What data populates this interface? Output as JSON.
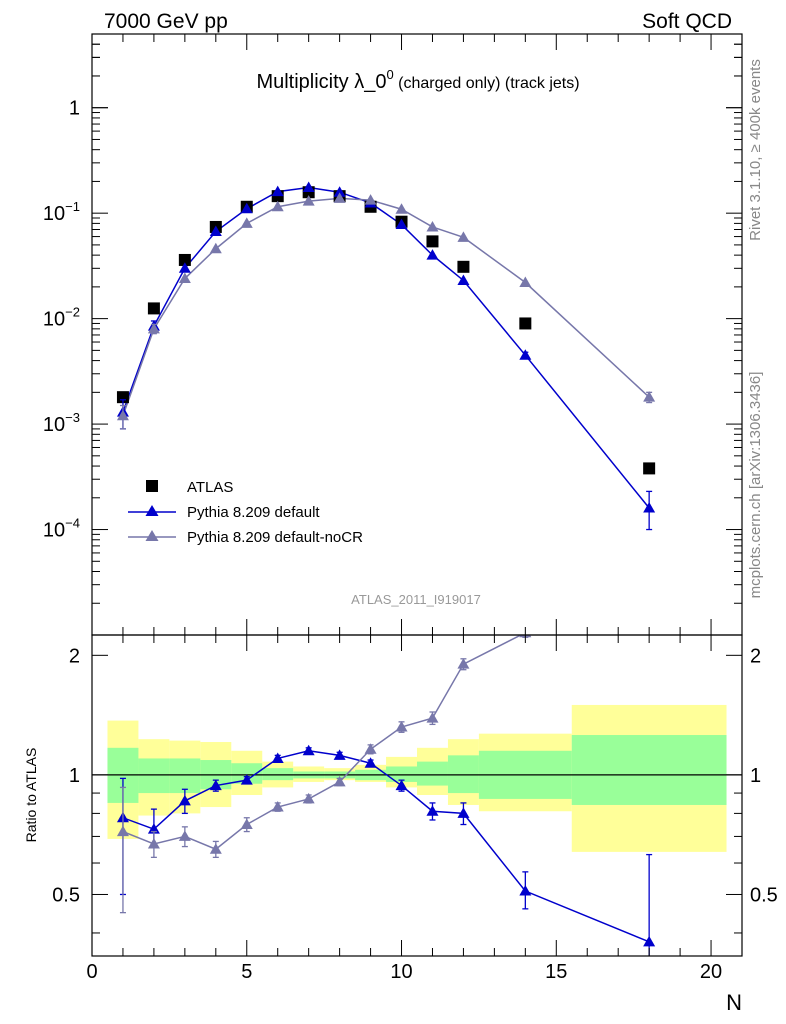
{
  "header": {
    "left_text": "7000 GeV pp",
    "right_text": "Soft QCD"
  },
  "side_text": {
    "rivet": "Rivet 3.1.10, ≥ 400k events",
    "mcplots": "mcplots.cern.ch [arXiv:1306.3436]"
  },
  "chart_data": [
    {
      "type": "scatter",
      "panel": "main",
      "title_main": "Multiplicity λ_0",
      "title_sup": "0",
      "title_suffix": " (charged only) (track jets)",
      "watermark": "ATLAS_2011_I919017",
      "yscale": "log",
      "xlim": [
        0,
        21
      ],
      "ylim": [
        1e-05,
        5
      ],
      "y_tick_labels": [
        {
          "value": 1,
          "mant": "1",
          "exp": ""
        },
        {
          "value": 0.1,
          "mant": "10",
          "exp": "−1"
        },
        {
          "value": 0.01,
          "mant": "10",
          "exp": "−2"
        },
        {
          "value": 0.001,
          "mant": "10",
          "exp": "−3"
        },
        {
          "value": 0.0001,
          "mant": "10",
          "exp": "−4"
        }
      ],
      "legend_position": "bottom-left",
      "series": [
        {
          "name": "ATLAS",
          "marker": "square",
          "color": "#000000",
          "x": [
            1,
            2,
            3,
            4,
            5,
            6,
            7,
            8,
            9,
            10,
            11,
            12,
            14,
            18
          ],
          "y": [
            0.0018,
            0.0125,
            0.036,
            0.074,
            0.115,
            0.145,
            0.158,
            0.145,
            0.115,
            0.083,
            0.054,
            0.031,
            0.009,
            0.00038
          ]
        },
        {
          "name": "Pythia 8.209 default",
          "marker": "triangle",
          "color": "#0000cc",
          "x": [
            1,
            2,
            3,
            4,
            5,
            6,
            7,
            8,
            9,
            10,
            11,
            12,
            14,
            18
          ],
          "y": [
            0.0013,
            0.0085,
            0.03,
            0.067,
            0.11,
            0.16,
            0.175,
            0.158,
            0.125,
            0.078,
            0.04,
            0.023,
            0.0045,
            0.00016
          ],
          "yerr_low": [
            0.0004,
            0.001,
            0,
            0,
            0,
            0,
            0,
            0,
            0,
            0,
            0,
            0,
            0.0003,
            6e-05
          ],
          "yerr_high": [
            0.0004,
            0.001,
            0,
            0,
            0,
            0,
            0,
            0,
            0,
            0,
            0,
            0,
            0.0003,
            7e-05
          ]
        },
        {
          "name": "Pythia 8.209 default-noCR",
          "marker": "triangle",
          "color": "#7777aa",
          "x": [
            1,
            2,
            3,
            4,
            5,
            6,
            7,
            8,
            9,
            10,
            11,
            12,
            14,
            18
          ],
          "y": [
            0.0012,
            0.008,
            0.024,
            0.046,
            0.08,
            0.115,
            0.13,
            0.138,
            0.133,
            0.109,
            0.074,
            0.059,
            0.022,
            0.0018
          ],
          "yerr_low": [
            0.0003,
            0.0008,
            0,
            0,
            0,
            0,
            0,
            0,
            0,
            0,
            0,
            0,
            0,
            0.0002
          ],
          "yerr_high": [
            0.0003,
            0.0008,
            0,
            0,
            0,
            0,
            0,
            0,
            0,
            0,
            0,
            0,
            0,
            0.0002
          ]
        }
      ]
    },
    {
      "type": "scatter",
      "panel": "ratio",
      "xlabel": "N",
      "ylabel": "Ratio to ATLAS",
      "xlim": [
        0,
        21
      ],
      "ylim": [
        0.35,
        2.25
      ],
      "x_ticks": [
        0,
        5,
        10,
        15,
        20
      ],
      "y_ticks": [
        0.5,
        1,
        2
      ],
      "y_tick_labels": [
        "0.5",
        "1",
        "2"
      ],
      "reference_line": 1,
      "bands": {
        "x_edges": [
          0.5,
          1.5,
          2.5,
          3.5,
          4.5,
          5.5,
          6.5,
          7.5,
          8.5,
          9.5,
          10.5,
          11.5,
          12.5,
          15.5,
          20.5
        ],
        "yellow_low": [
          0.69,
          0.79,
          0.8,
          0.83,
          0.89,
          0.93,
          0.96,
          0.97,
          0.96,
          0.93,
          0.89,
          0.84,
          0.81,
          0.64
        ],
        "yellow_high": [
          1.37,
          1.23,
          1.22,
          1.21,
          1.15,
          1.08,
          1.05,
          1.04,
          1.06,
          1.11,
          1.17,
          1.23,
          1.27,
          1.5
        ],
        "green_low": [
          0.85,
          0.9,
          0.9,
          0.92,
          0.95,
          0.97,
          0.98,
          0.98,
          0.97,
          0.96,
          0.94,
          0.9,
          0.87,
          0.84
        ],
        "green_high": [
          1.17,
          1.1,
          1.1,
          1.09,
          1.07,
          1.04,
          1.02,
          1.02,
          1.03,
          1.05,
          1.08,
          1.12,
          1.15,
          1.26
        ]
      },
      "series": [
        {
          "name": "Pythia 8.209 default",
          "color": "#0000cc",
          "x": [
            1,
            2,
            3,
            4,
            5,
            6,
            7,
            8,
            9,
            10,
            11,
            12,
            14,
            18
          ],
          "y": [
            0.78,
            0.73,
            0.86,
            0.94,
            0.97,
            1.1,
            1.15,
            1.12,
            1.07,
            0.94,
            0.81,
            0.8,
            0.51,
            0.38
          ],
          "yerr_low": [
            0.28,
            0.07,
            0.06,
            0.03,
            0.02,
            0.02,
            0.02,
            0.02,
            0.02,
            0.03,
            0.04,
            0.05,
            0.05,
            0.05
          ],
          "yerr_high": [
            0.2,
            0.09,
            0.06,
            0.03,
            0.02,
            0.02,
            0.02,
            0.02,
            0.02,
            0.03,
            0.04,
            0.05,
            0.06,
            0.25
          ]
        },
        {
          "name": "Pythia 8.209 default-noCR",
          "color": "#7777aa",
          "x": [
            1,
            2,
            3,
            4,
            5,
            6,
            7,
            8,
            9,
            10,
            11,
            12,
            14
          ],
          "y": [
            0.72,
            0.67,
            0.7,
            0.65,
            0.75,
            0.83,
            0.87,
            0.96,
            1.16,
            1.32,
            1.39,
            1.9,
            2.28
          ],
          "yerr_low": [
            0.27,
            0.05,
            0.04,
            0.03,
            0.03,
            0.02,
            0.02,
            0.02,
            0.03,
            0.04,
            0.05,
            0.06,
            0.06
          ],
          "yerr_high": [
            0.21,
            0.05,
            0.04,
            0.03,
            0.03,
            0.02,
            0.02,
            0.02,
            0.03,
            0.04,
            0.05,
            0.06,
            0.06
          ]
        }
      ]
    }
  ]
}
